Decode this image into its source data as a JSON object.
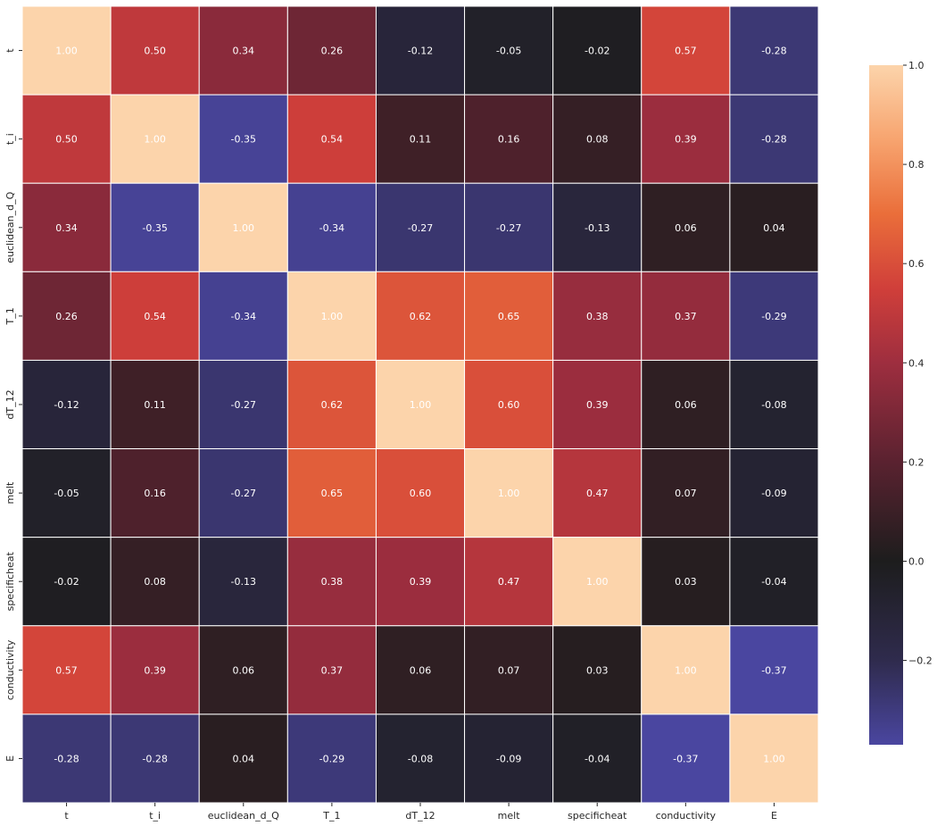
{
  "chart_data": {
    "type": "heatmap",
    "title": "",
    "xlabel": "",
    "ylabel": "",
    "labels": [
      "t",
      "t_i",
      "euclidean_d_Q",
      "T_1",
      "dT_12",
      "melt",
      "specificheat",
      "conductivity",
      "E"
    ],
    "matrix": [
      [
        1.0,
        0.5,
        0.34,
        0.26,
        -0.12,
        -0.05,
        -0.02,
        0.57,
        -0.28
      ],
      [
        0.5,
        1.0,
        -0.35,
        0.54,
        0.11,
        0.16,
        0.08,
        0.39,
        -0.28
      ],
      [
        0.34,
        -0.35,
        1.0,
        -0.34,
        -0.27,
        -0.27,
        -0.13,
        0.06,
        0.04
      ],
      [
        0.26,
        0.54,
        -0.34,
        1.0,
        0.62,
        0.65,
        0.38,
        0.37,
        -0.29
      ],
      [
        -0.12,
        0.11,
        -0.27,
        0.62,
        1.0,
        0.6,
        0.39,
        0.06,
        -0.08
      ],
      [
        -0.05,
        0.16,
        -0.27,
        0.65,
        0.6,
        1.0,
        0.47,
        0.07,
        -0.09
      ],
      [
        -0.02,
        0.08,
        -0.13,
        0.38,
        0.39,
        0.47,
        1.0,
        0.03,
        -0.04
      ],
      [
        0.57,
        0.39,
        0.06,
        0.37,
        0.06,
        0.07,
        0.03,
        1.0,
        -0.37
      ],
      [
        -0.28,
        -0.28,
        0.04,
        -0.29,
        -0.08,
        -0.09,
        -0.04,
        -0.37,
        1.0
      ]
    ],
    "value_format": "2 decimals",
    "color_range": [
      -0.37,
      1.0
    ],
    "colormap_center": 0.0,
    "colorbar_ticks": [
      1.0,
      0.8,
      0.6,
      0.4,
      0.2,
      0.0,
      -0.2
    ],
    "colorbar_tick_labels": [
      "1.0",
      "0.8",
      "0.6",
      "0.4",
      "0.2",
      "0.0",
      "−0.2"
    ],
    "colormap_stops": [
      {
        "v": -0.37,
        "color": "#4a46a0"
      },
      {
        "v": -0.2,
        "color": "#2f2b4d"
      },
      {
        "v": 0.0,
        "color": "#1d1d1d"
      },
      {
        "v": 0.2,
        "color": "#5a2230"
      },
      {
        "v": 0.4,
        "color": "#9e2e3f"
      },
      {
        "v": 0.55,
        "color": "#d03f3a"
      },
      {
        "v": 0.7,
        "color": "#ea6e3a"
      },
      {
        "v": 0.85,
        "color": "#f7a46f"
      },
      {
        "v": 1.0,
        "color": "#fcd4ab"
      }
    ],
    "gridline_color": "#ffffff",
    "annotation_color": "#ffffff"
  }
}
